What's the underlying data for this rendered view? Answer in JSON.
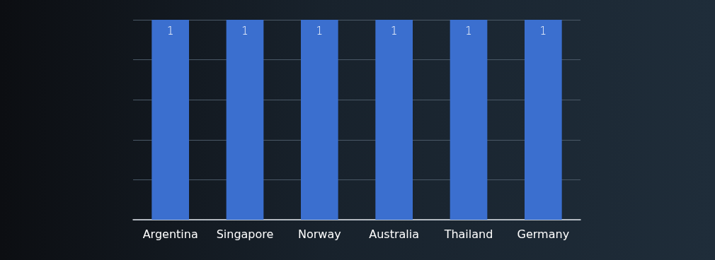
{
  "chart_data": {
    "type": "bar",
    "categories": [
      "Argentina",
      "Singapore",
      "Norway",
      "Australia",
      "Thailand",
      "Germany"
    ],
    "values": [
      1,
      1,
      1,
      1,
      1,
      1
    ],
    "color": "#3b6fcf",
    "data_labels": true,
    "grid": "y",
    "ylim": [
      0,
      1
    ],
    "yticks": [
      {
        "value": 0,
        "label": null
      },
      {
        "value": 0.2,
        "label": null
      },
      {
        "value": 0.4,
        "label": null
      },
      {
        "value": 0.6,
        "label": null
      },
      {
        "value": 0.8,
        "label": null
      },
      {
        "value": 1,
        "label": null
      }
    ],
    "tick_labels": "x"
  }
}
